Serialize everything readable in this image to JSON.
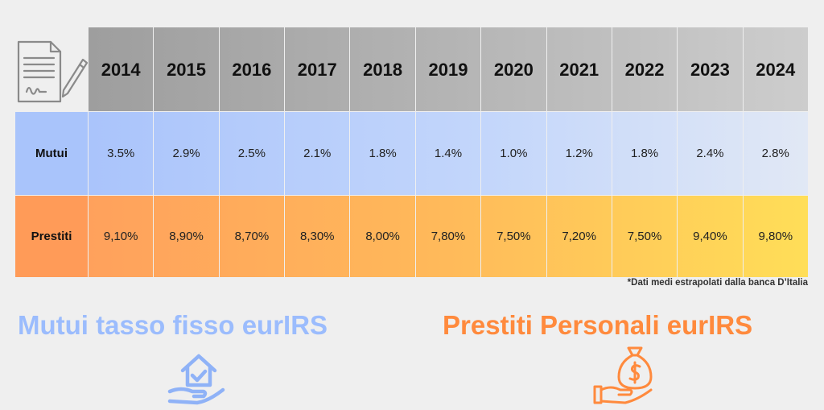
{
  "chart_data": {
    "type": "table",
    "columns": [
      "2014",
      "2015",
      "2016",
      "2017",
      "2018",
      "2019",
      "2020",
      "2021",
      "2022",
      "2023",
      "2024"
    ],
    "rows": [
      {
        "name": "Mutui",
        "values": [
          "3.5%",
          "2.9%",
          "2.5%",
          "2.1%",
          "1.8%",
          "1.4%",
          "1.0%",
          "1.2%",
          "1.8%",
          "2.4%",
          "2.8%"
        ]
      },
      {
        "name": "Prestiti",
        "values": [
          "9,10%",
          "8,90%",
          "8,70%",
          "8,30%",
          "8,00%",
          "7,80%",
          "7,50%",
          "7,20%",
          "7,50%",
          "9,40%",
          "9,80%"
        ]
      }
    ]
  },
  "footnote": "*Dati medi estrapolati dalla banca D’Italia",
  "titles": {
    "mutui": "Mutui tasso fisso eurIRS",
    "prestiti": "Prestiti Personali eurIRS"
  },
  "colors": {
    "mutui_title": "#9bbcfd",
    "prestiti_title": "#ff8a3d",
    "mutui_row": "#a9c4fb",
    "prestiti_row": "#ff9b58"
  },
  "icons": {
    "header": "contract-signing-icon",
    "mutui": "house-in-hand-icon",
    "prestiti": "money-bag-in-hand-icon"
  }
}
